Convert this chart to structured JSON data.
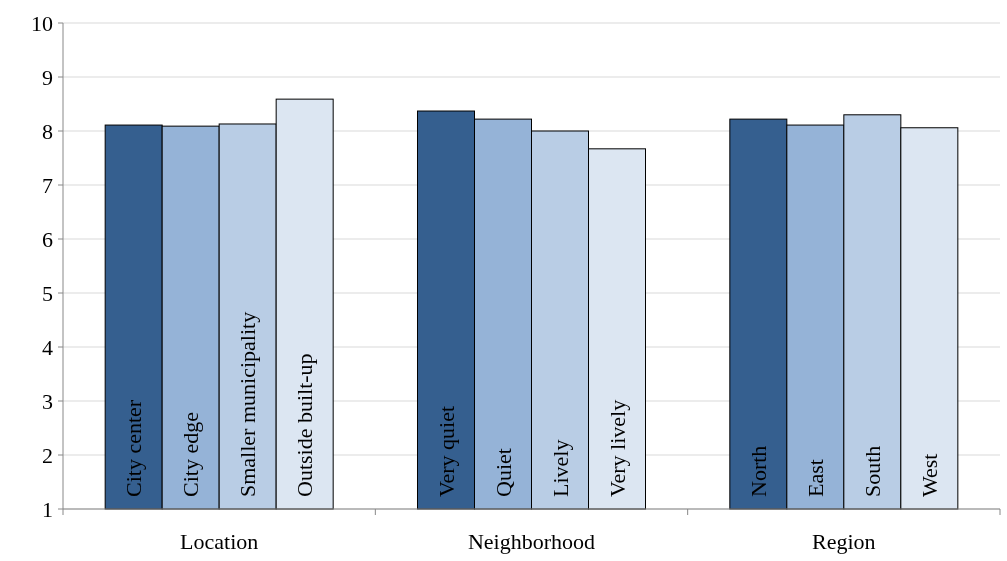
{
  "chart_data": {
    "type": "bar",
    "categories": [
      "City center",
      "City edge",
      "Smaller municipality",
      "Outside built-up",
      "Very quiet",
      "Quiet",
      "Lively",
      "Very lively",
      "North",
      "East",
      "South",
      "West"
    ],
    "values": [
      8.11,
      8.09,
      8.13,
      8.59,
      8.37,
      8.22,
      8.0,
      7.67,
      8.22,
      8.11,
      8.3,
      8.06
    ],
    "colors": [
      "#355f8f",
      "#95b3d7",
      "#b9cde5",
      "#dce6f2",
      "#355f8f",
      "#95b3d7",
      "#b9cde5",
      "#dce6f2",
      "#355f8f",
      "#95b3d7",
      "#b9cde5",
      "#dce6f2"
    ],
    "annotations": [
      "Location",
      "Neighborhood",
      "Region"
    ],
    "ylim": [
      1,
      10
    ],
    "yticks": [
      1,
      2,
      3,
      4,
      5,
      6,
      7,
      8,
      9,
      10
    ],
    "grid": "y"
  }
}
